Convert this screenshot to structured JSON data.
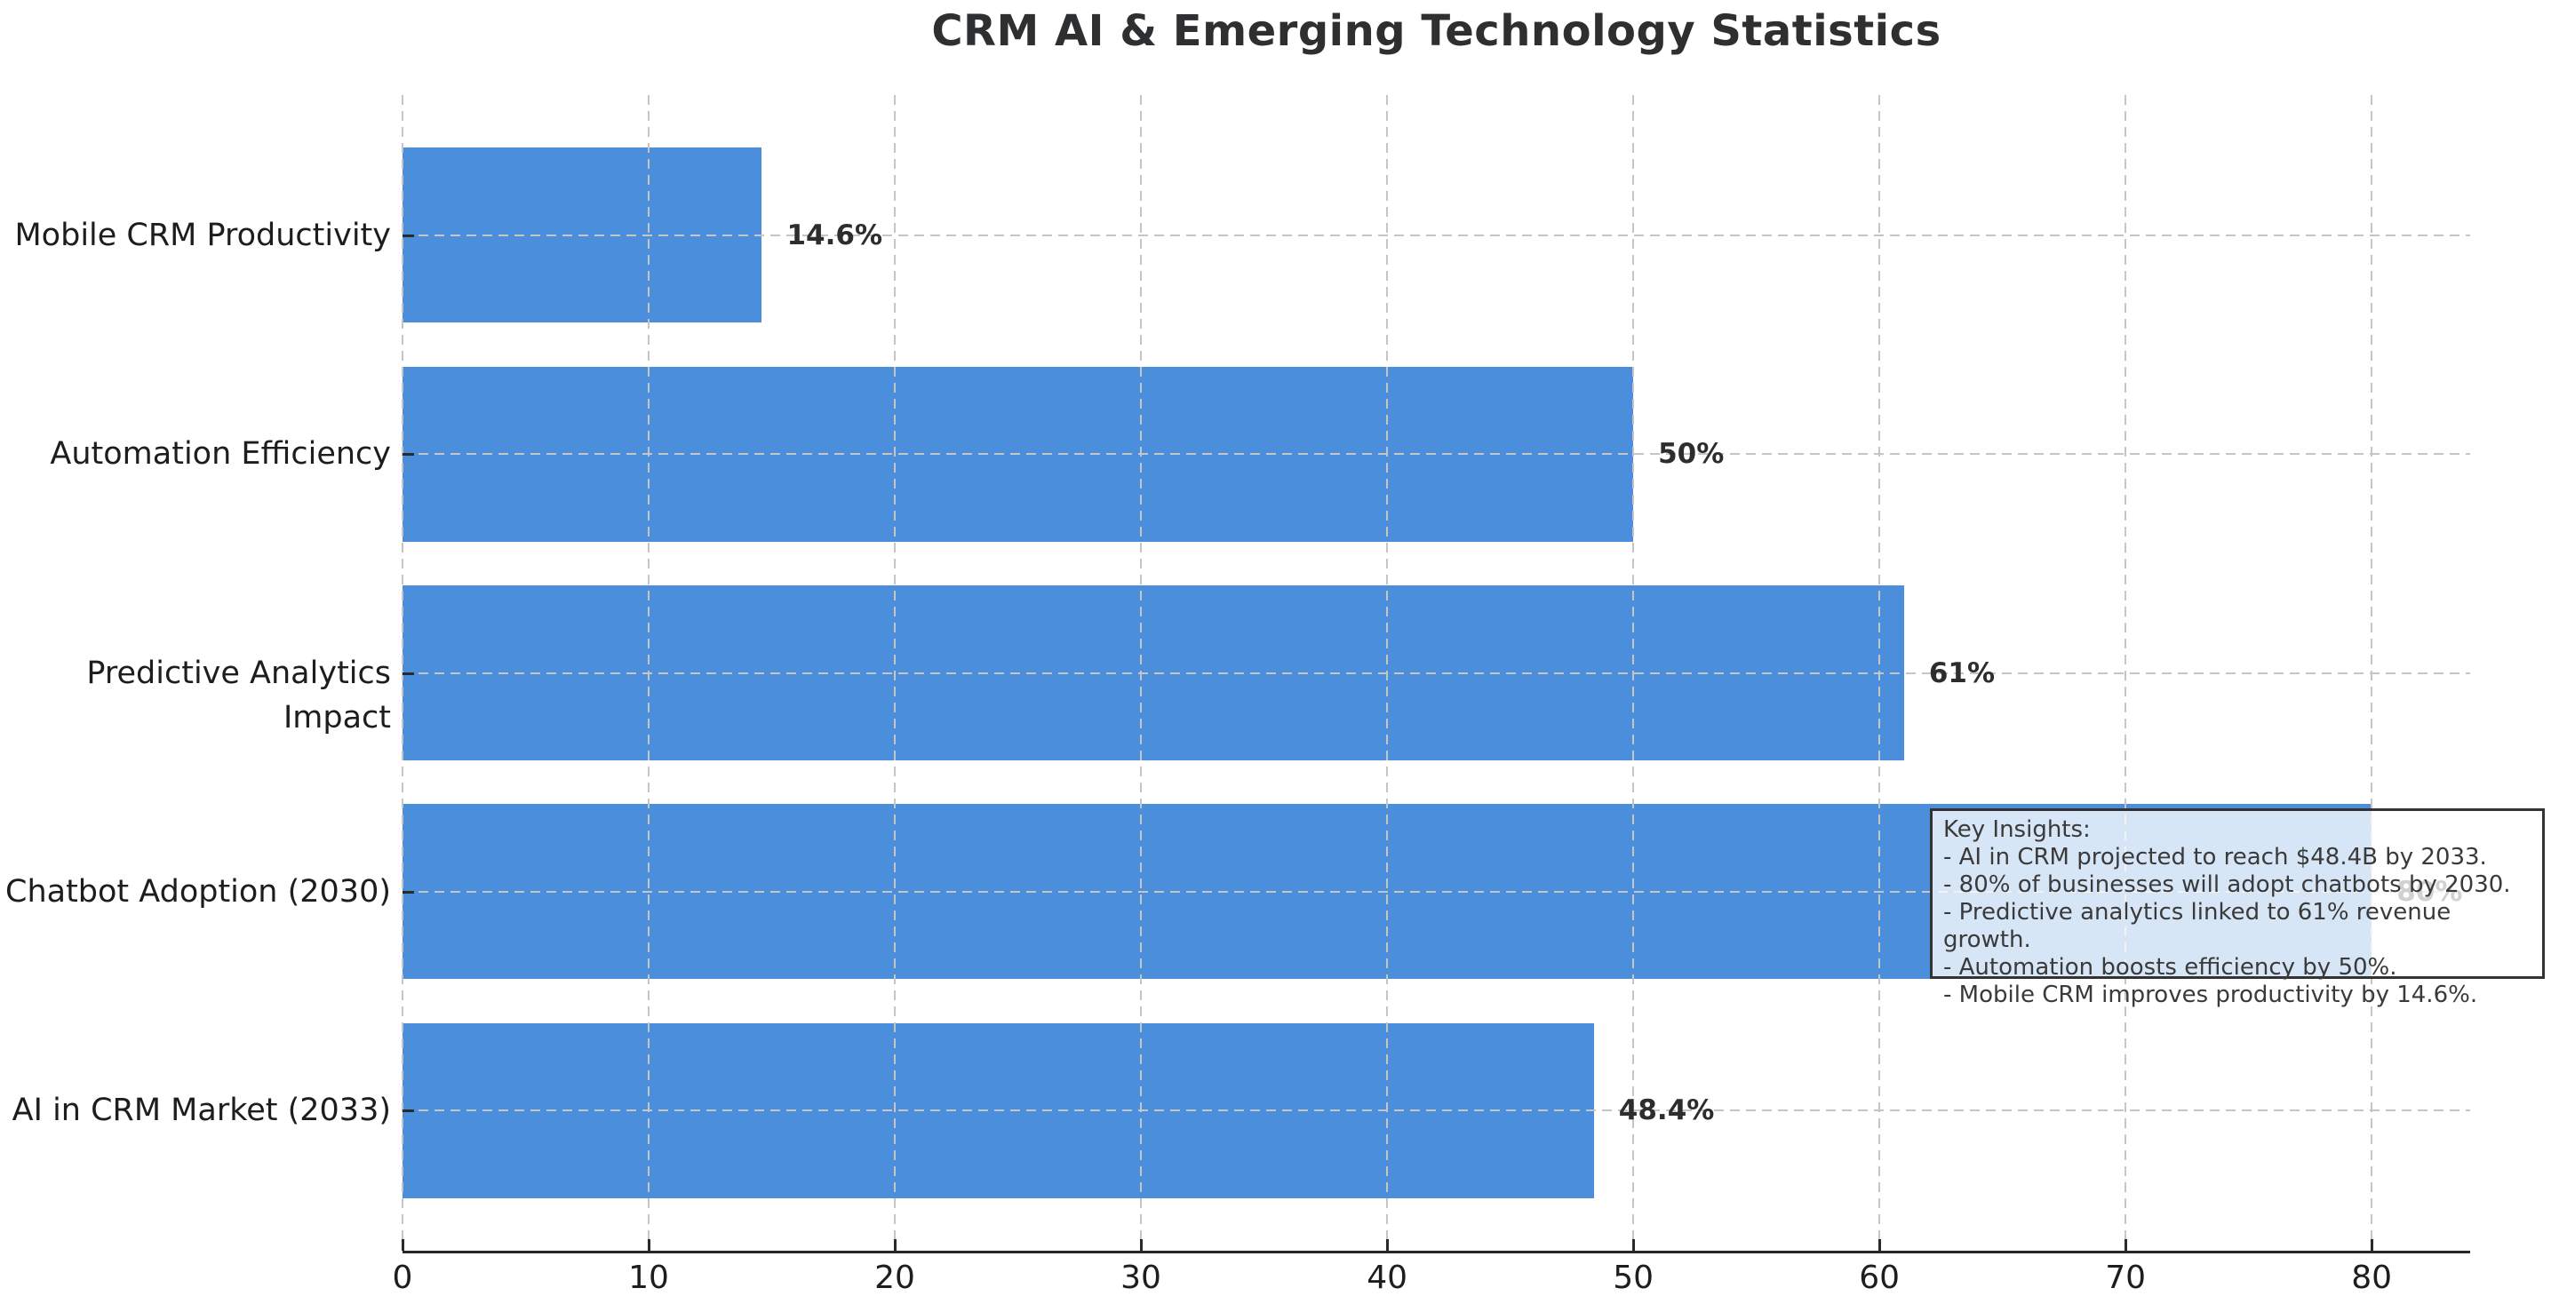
{
  "title": "CRM AI & Emerging Technology Statistics",
  "chart_data": {
    "type": "bar",
    "orientation": "horizontal",
    "title": "CRM AI & Emerging Technology Statistics",
    "xlabel": "",
    "ylabel": "",
    "categories": [
      "Mobile CRM Productivity",
      "Automation Efficiency",
      "Predictive Analytics Impact",
      "Chatbot Adoption (2030)",
      "AI in CRM Market (2033)"
    ],
    "values": [
      14.6,
      50,
      61,
      80,
      48.4
    ],
    "value_labels": [
      "14.6%",
      "50%",
      "61%",
      "80%",
      "48.4%"
    ],
    "xlim": [
      0,
      84
    ],
    "xticks": [
      0,
      10,
      20,
      30,
      40,
      50,
      60,
      70,
      80
    ],
    "xtick_labels": [
      "0",
      "10",
      "20",
      "30",
      "40",
      "50",
      "60",
      "70",
      "80"
    ],
    "grid": true,
    "grid_style": "dashed",
    "legend": "none",
    "bar_color": "#4a8edc",
    "annotation": "Key Insights:\n- AI in CRM projected to reach $48.4B by 2033.\n- 80% of businesses will adopt chatbots by 2030.\n- Predictive analytics linked to 61% revenue growth.\n- Automation boosts efficiency by 50%.\n- Mobile CRM improves productivity by 14.6%."
  },
  "colors": {
    "bar": "#4a8edc",
    "grid": "#c5c5c5",
    "axis": "#262626",
    "title_text": "#2e2f31",
    "tick_text": "#1d1d1d",
    "value_label_text": "#2d2d2d",
    "annotation_border": "#333333",
    "annotation_bg": "rgba(255,255,255,0.78)"
  }
}
